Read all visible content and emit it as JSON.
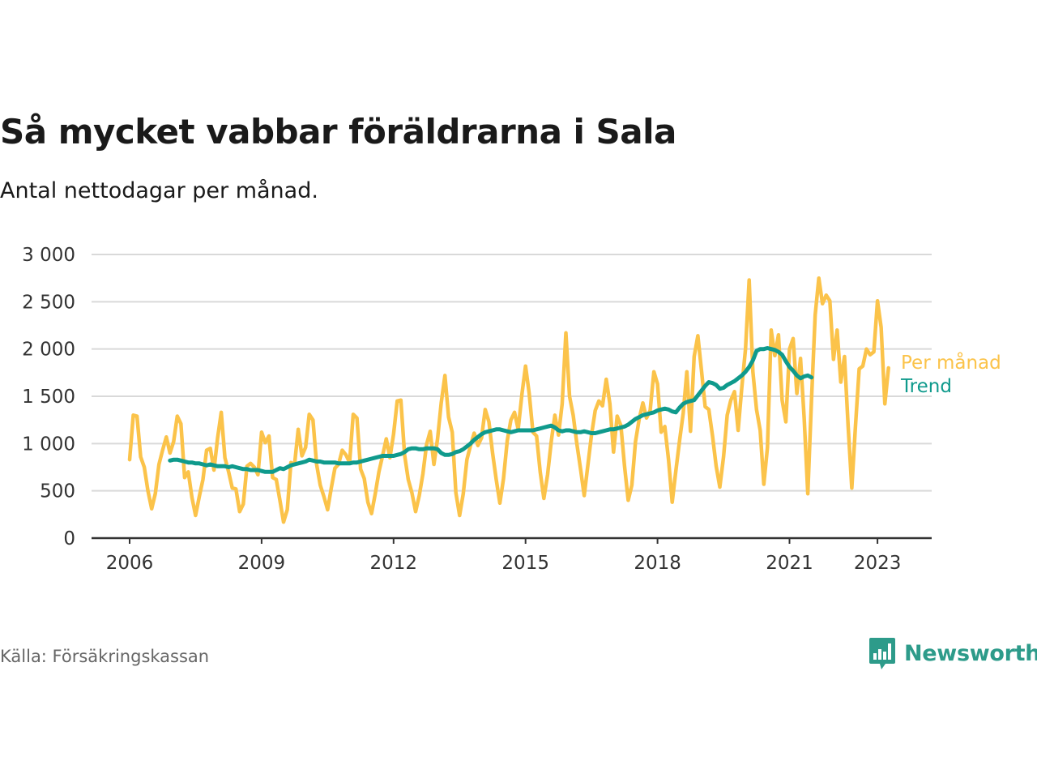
{
  "title": "Så mycket vabbar föräldrarna i Sala",
  "subtitle": "Antal nettodagar per månad.",
  "source": "Källa: Försäkringskassan",
  "brand": {
    "name": "Newsworthy",
    "icon": "bar-chart-speech-bubble-icon"
  },
  "colors": {
    "monthly": "#fbc34a",
    "trend": "#0f9a8c",
    "grid": "#d9d9d9",
    "axis": "#333333",
    "brand": "#2d9b8a"
  },
  "chart_data": {
    "type": "line",
    "title": "Så mycket vabbar föräldrarna i Sala",
    "subtitle": "Antal nettodagar per månad.",
    "xlabel": "",
    "ylabel": "",
    "x_ticks": [
      "2006",
      "2009",
      "2012",
      "2015",
      "2018",
      "2021",
      "2023"
    ],
    "y_ticks": [
      "0",
      "500",
      "1 000",
      "1 500",
      "2 000",
      "2 500",
      "3 000"
    ],
    "ylim": [
      0,
      3000
    ],
    "xlim": [
      "2006-01",
      "2023-08"
    ],
    "grid": true,
    "legend": "direct labels at line ends, right",
    "series": [
      {
        "name": "Per månad",
        "start": "2006-01",
        "frequency": "monthly",
        "values": [
          830,
          1300,
          1290,
          860,
          750,
          500,
          310,
          470,
          780,
          930,
          1070,
          900,
          1020,
          1290,
          1210,
          640,
          700,
          430,
          240,
          440,
          620,
          930,
          950,
          720,
          1060,
          1330,
          850,
          700,
          530,
          520,
          280,
          360,
          760,
          790,
          750,
          670,
          1120,
          1010,
          1080,
          640,
          620,
          400,
          170,
          300,
          800,
          780,
          1150,
          870,
          960,
          1310,
          1250,
          780,
          560,
          440,
          300,
          530,
          740,
          780,
          930,
          880,
          800,
          1310,
          1270,
          730,
          630,
          380,
          260,
          470,
          700,
          870,
          1050,
          850,
          1100,
          1450,
          1460,
          880,
          620,
          480,
          280,
          450,
          680,
          990,
          1130,
          780,
          1050,
          1430,
          1720,
          1280,
          1120,
          480,
          240,
          470,
          830,
          980,
          1110,
          980,
          1060,
          1360,
          1230,
          900,
          620,
          370,
          630,
          1030,
          1250,
          1330,
          1150,
          1520,
          1820,
          1530,
          1120,
          1080,
          700,
          420,
          670,
          1020,
          1300,
          1090,
          1420,
          2170,
          1500,
          1300,
          1000,
          730,
          450,
          770,
          1090,
          1350,
          1450,
          1400,
          1680,
          1420,
          910,
          1290,
          1190,
          760,
          400,
          560,
          1020,
          1260,
          1430,
          1270,
          1350,
          1760,
          1630,
          1120,
          1180,
          830,
          380,
          710,
          1030,
          1320,
          1760,
          1130,
          1920,
          2140,
          1770,
          1390,
          1360,
          1080,
          760,
          540,
          860,
          1300,
          1460,
          1550,
          1140,
          1600,
          2000,
          2730,
          1760,
          1360,
          1140,
          570,
          960,
          2200,
          1930,
          2150,
          1460,
          1230,
          2000,
          2110,
          1530,
          1900,
          1270,
          470,
          1450,
          2360,
          2750,
          2480,
          2570,
          2510,
          1890,
          2200,
          1650,
          1920,
          1180,
          530,
          1180,
          1790,
          1820,
          2000,
          1940,
          1970,
          2510,
          2230,
          1420,
          1800
        ]
      },
      {
        "name": "Trend",
        "start": "2006-12",
        "frequency": "monthly",
        "values": [
          820,
          830,
          830,
          820,
          810,
          800,
          800,
          790,
          790,
          780,
          770,
          780,
          770,
          760,
          760,
          760,
          750,
          760,
          750,
          740,
          730,
          730,
          720,
          720,
          720,
          710,
          700,
          700,
          700,
          720,
          740,
          730,
          750,
          770,
          780,
          790,
          800,
          810,
          830,
          820,
          810,
          810,
          800,
          800,
          800,
          800,
          790,
          790,
          790,
          790,
          800,
          800,
          810,
          820,
          830,
          840,
          850,
          860,
          870,
          870,
          870,
          870,
          880,
          890,
          910,
          940,
          950,
          950,
          940,
          940,
          950,
          950,
          950,
          940,
          900,
          880,
          880,
          890,
          910,
          920,
          940,
          970,
          1000,
          1040,
          1070,
          1100,
          1120,
          1130,
          1140,
          1150,
          1150,
          1140,
          1130,
          1120,
          1130,
          1140,
          1140,
          1140,
          1140,
          1140,
          1150,
          1160,
          1170,
          1180,
          1190,
          1170,
          1140,
          1130,
          1140,
          1140,
          1130,
          1120,
          1120,
          1130,
          1120,
          1110,
          1110,
          1120,
          1130,
          1140,
          1150,
          1150,
          1160,
          1170,
          1180,
          1200,
          1230,
          1260,
          1280,
          1300,
          1310,
          1320,
          1330,
          1350,
          1360,
          1370,
          1360,
          1340,
          1330,
          1380,
          1420,
          1440,
          1450,
          1460,
          1510,
          1560,
          1610,
          1650,
          1640,
          1620,
          1580,
          1590,
          1620,
          1640,
          1660,
          1690,
          1720,
          1760,
          1810,
          1880,
          1980,
          2000,
          2000,
          2010,
          2000,
          1990,
          1970,
          1940,
          1870,
          1810,
          1770,
          1720,
          1690,
          1710,
          1720,
          1700
        ]
      }
    ]
  }
}
